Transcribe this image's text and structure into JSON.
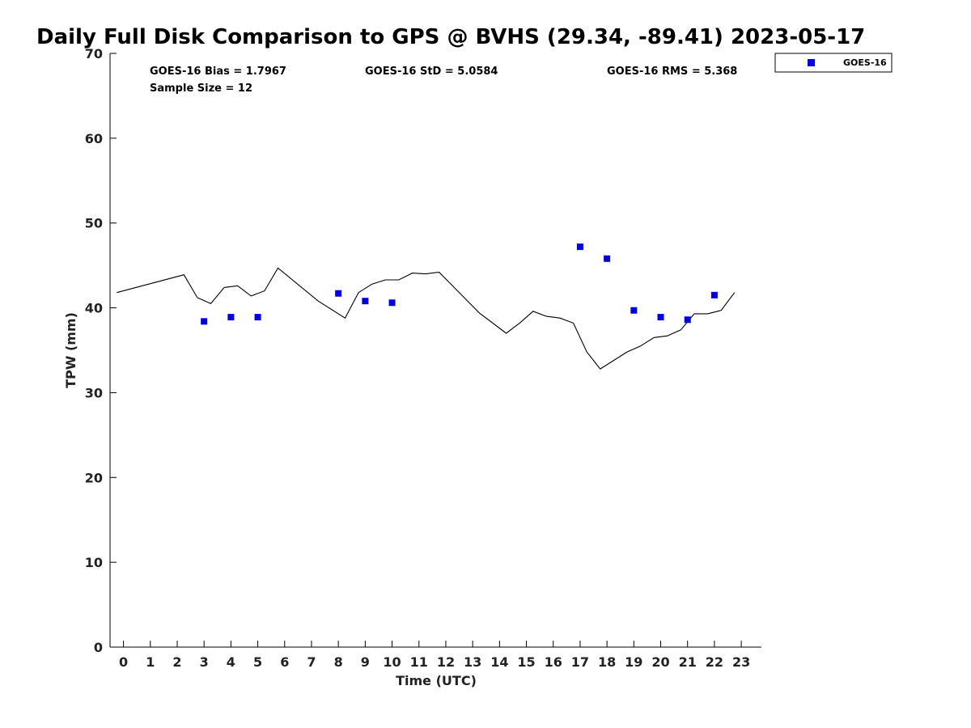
{
  "chart_data": {
    "type": "line+scatter",
    "title": "Daily Full Disk Comparison to GPS @ BVHS (29.34, -89.41) 2023-05-17",
    "xlabel": "Time (UTC)",
    "ylabel": "TPW (mm)",
    "xlim": [
      -0.5,
      23.75
    ],
    "ylim": [
      0,
      70
    ],
    "xticks": [
      0,
      1,
      2,
      3,
      4,
      5,
      6,
      7,
      8,
      9,
      10,
      11,
      12,
      13,
      14,
      15,
      16,
      17,
      18,
      19,
      20,
      21,
      22,
      23
    ],
    "yticks": [
      0,
      10,
      20,
      30,
      40,
      50,
      60,
      70
    ],
    "grid": false,
    "legend_position": "top-right",
    "series": [
      {
        "kind": "line",
        "color": "#000000",
        "x": [
          -0.25,
          2.25,
          2.75,
          3.25,
          3.75,
          4.25,
          4.75,
          5.25,
          5.75,
          7.25,
          8.25,
          8.75,
          9.25,
          9.75,
          10.25,
          10.75,
          11.25,
          11.75,
          12.25,
          13.25,
          14.25,
          14.75,
          15.25,
          15.75,
          16.25,
          16.75,
          17.25,
          17.75,
          18.75,
          19.25,
          19.75,
          20.25,
          20.75,
          21.25,
          21.75,
          22.25,
          22.75
        ],
        "y": [
          41.8,
          43.9,
          41.2,
          40.5,
          42.4,
          42.6,
          41.4,
          42.0,
          44.7,
          40.8,
          38.8,
          41.8,
          42.8,
          43.3,
          43.3,
          44.1,
          44.0,
          44.2,
          42.6,
          39.4,
          37.0,
          38.2,
          39.6,
          39.0,
          38.8,
          38.2,
          34.8,
          32.8,
          34.8,
          35.5,
          36.5,
          36.7,
          37.4,
          39.3,
          39.3,
          39.7,
          41.8
        ]
      },
      {
        "kind": "scatter",
        "name": "GOES-16",
        "color": "#0000dd",
        "marker": "square",
        "x": [
          3,
          4,
          5,
          8,
          9,
          10,
          17,
          18,
          19,
          20,
          21,
          22
        ],
        "y": [
          38.4,
          38.9,
          38.9,
          41.7,
          40.8,
          40.6,
          47.2,
          45.8,
          39.7,
          38.9,
          38.6,
          41.5
        ]
      }
    ],
    "annotations": {
      "bias": "GOES-16 Bias = 1.7967",
      "std": "GOES-16 StD = 5.0584",
      "rms": "GOES-16 RMS = 5.368",
      "sample": "Sample Size = 12"
    }
  }
}
